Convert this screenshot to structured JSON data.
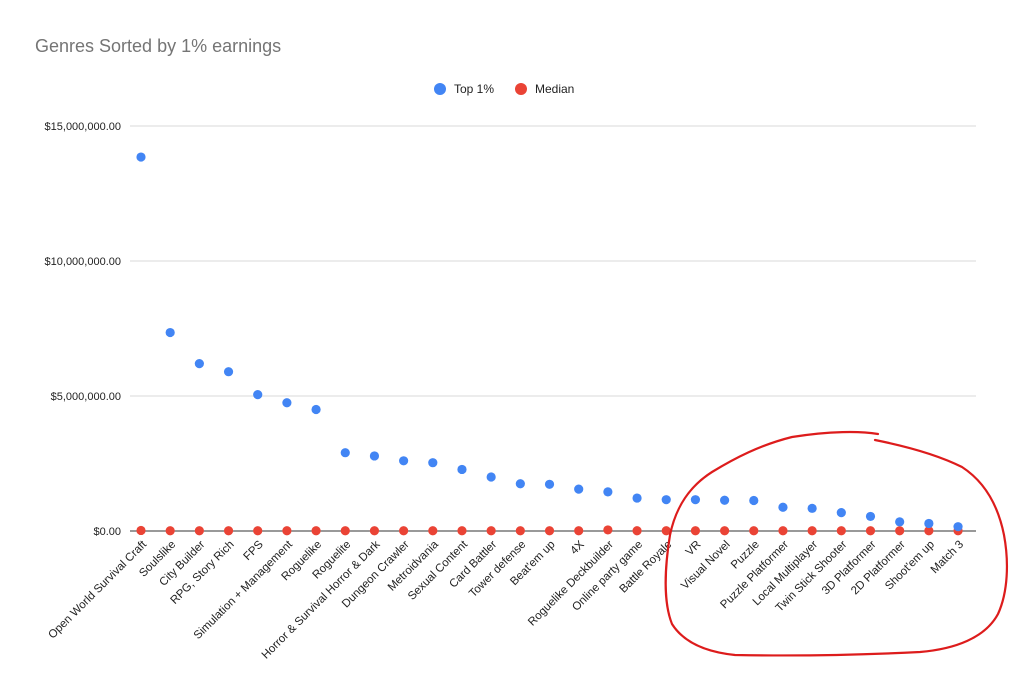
{
  "chart_data": {
    "type": "scatter",
    "title": "Genres Sorted by 1% earnings",
    "xlabel": "",
    "ylabel": "",
    "ylim": [
      0,
      15000000
    ],
    "yticks": [
      "$0.00",
      "$5,000,000.00",
      "$10,000,000.00",
      "$15,000,000.00"
    ],
    "ytick_values": [
      0,
      5000000,
      10000000,
      15000000
    ],
    "grid": true,
    "legend_position": "top",
    "categories": [
      "Open World Survival Craft",
      "Soulslike",
      "City Builder",
      "RPG, Story Rich",
      "FPS",
      "Simulation + Management",
      "Roguelike",
      "Roguelite",
      "Horror & Survival Horror & Dark",
      "Dungeon Crawler",
      "Metroidvania",
      "Sexual Content",
      "Card Battler",
      "Tower defense",
      "Beat'em up",
      "4X",
      "Roguelike Deckbuilder",
      "Online party game",
      "Battle Royale",
      "VR",
      "Visual Novel",
      "Puzzle",
      "Puzzle Platformer",
      "Local Multiplayer",
      "Twin Stick Shooter",
      "3D Platformer",
      "2D Platformer",
      "Shoot'em up",
      "Match 3"
    ],
    "series": [
      {
        "name": "Top 1%",
        "color": "#4285f4",
        "values": [
          13850000,
          7350000,
          6200000,
          5900000,
          5050000,
          4750000,
          4500000,
          2900000,
          2780000,
          2600000,
          2530000,
          2280000,
          2000000,
          1750000,
          1730000,
          1550000,
          1450000,
          1220000,
          1160000,
          1160000,
          1140000,
          1130000,
          880000,
          840000,
          680000,
          540000,
          340000,
          280000,
          160000
        ]
      },
      {
        "name": "Median",
        "color": "#ea4335",
        "values": [
          20000,
          10000,
          10000,
          10000,
          10000,
          10000,
          10000,
          10000,
          10000,
          10000,
          10000,
          10000,
          10000,
          10000,
          10000,
          10000,
          40000,
          10000,
          10000,
          10000,
          10000,
          10000,
          10000,
          10000,
          10000,
          10000,
          10000,
          10000,
          10000
        ]
      }
    ]
  },
  "annotation": {
    "type": "hand-drawn-circle",
    "color": "#dd1c1c"
  }
}
